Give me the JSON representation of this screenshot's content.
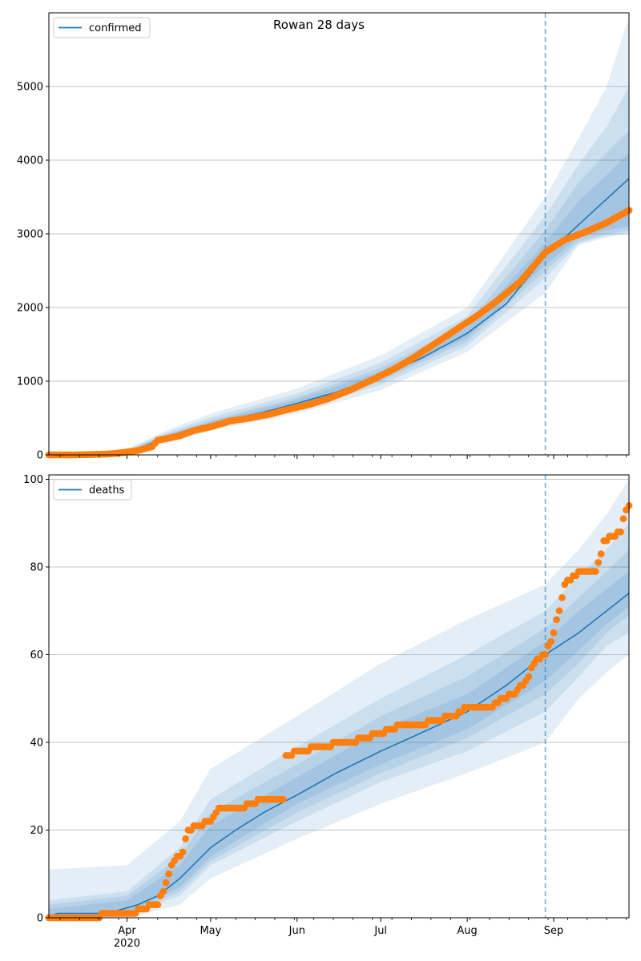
{
  "figure": {
    "title": "Rowan 28 days"
  },
  "chart_data": [
    {
      "type": "line",
      "name": "confirmed-panel",
      "series": [
        {
          "name": "confirmed",
          "kind": "line",
          "color": "#1f77b4"
        }
      ],
      "legend_position": "top-left",
      "grid": "y",
      "xlim": [
        "2020-03-04",
        "2020-09-28"
      ],
      "ylim": [
        0,
        6000
      ],
      "yticks": [
        0,
        1000,
        2000,
        3000,
        4000,
        5000
      ],
      "forecast_start": "2020-08-29",
      "model_median": [
        [
          "2020-03-04",
          0
        ],
        [
          "2020-03-20",
          3
        ],
        [
          "2020-03-25",
          12
        ],
        [
          "2020-03-31",
          40
        ],
        [
          "2020-04-05",
          90
        ],
        [
          "2020-04-10",
          160
        ],
        [
          "2020-04-15",
          240
        ],
        [
          "2020-04-20",
          300
        ],
        [
          "2020-04-25",
          360
        ],
        [
          "2020-05-01",
          420
        ],
        [
          "2020-05-10",
          500
        ],
        [
          "2020-05-20",
          580
        ],
        [
          "2020-06-01",
          700
        ],
        [
          "2020-06-15",
          850
        ],
        [
          "2020-07-01",
          1080
        ],
        [
          "2020-07-15",
          1300
        ],
        [
          "2020-08-01",
          1650
        ],
        [
          "2020-08-15",
          2050
        ],
        [
          "2020-08-29",
          2700
        ],
        [
          "2020-09-05",
          2950
        ],
        [
          "2020-09-15",
          3300
        ],
        [
          "2020-09-28",
          3750
        ]
      ],
      "observed": [
        [
          "2020-03-04",
          0
        ],
        [
          "2020-03-12",
          0
        ],
        [
          "2020-03-18",
          3
        ],
        [
          "2020-03-24",
          10
        ],
        [
          "2020-03-28",
          20
        ],
        [
          "2020-04-01",
          40
        ],
        [
          "2020-04-05",
          60
        ],
        [
          "2020-04-10",
          110
        ],
        [
          "2020-04-12",
          200
        ],
        [
          "2020-04-15",
          220
        ],
        [
          "2020-04-20",
          260
        ],
        [
          "2020-04-25",
          330
        ],
        [
          "2020-05-01",
          380
        ],
        [
          "2020-05-08",
          460
        ],
        [
          "2020-05-15",
          500
        ],
        [
          "2020-05-22",
          550
        ],
        [
          "2020-05-28",
          610
        ],
        [
          "2020-06-05",
          680
        ],
        [
          "2020-06-12",
          760
        ],
        [
          "2020-06-20",
          880
        ],
        [
          "2020-06-28",
          1020
        ],
        [
          "2020-07-05",
          1150
        ],
        [
          "2020-07-12",
          1300
        ],
        [
          "2020-07-20",
          1500
        ],
        [
          "2020-07-28",
          1700
        ],
        [
          "2020-08-05",
          1900
        ],
        [
          "2020-08-12",
          2100
        ],
        [
          "2020-08-20",
          2350
        ],
        [
          "2020-08-29",
          2750
        ],
        [
          "2020-09-05",
          2920
        ],
        [
          "2020-09-12",
          3020
        ],
        [
          "2020-09-20",
          3150
        ],
        [
          "2020-09-28",
          3320
        ]
      ],
      "intervals": [
        {
          "opacity": 0.12,
          "band": [
            [
              "2020-03-04",
              0,
              0
            ],
            [
              "2020-04-01",
              20,
              80
            ],
            [
              "2020-04-15",
              160,
              330
            ],
            [
              "2020-05-01",
              330,
              560
            ],
            [
              "2020-06-01",
              560,
              900
            ],
            [
              "2020-07-01",
              880,
              1350
            ],
            [
              "2020-08-01",
              1400,
              2000
            ],
            [
              "2020-08-29",
              2200,
              3500
            ],
            [
              "2020-09-10",
              2850,
              4300
            ],
            [
              "2020-09-20",
              2950,
              5000
            ],
            [
              "2020-09-28",
              3000,
              5950
            ]
          ]
        },
        {
          "opacity": 0.12,
          "band": [
            [
              "2020-03-04",
              0,
              0
            ],
            [
              "2020-04-01",
              25,
              65
            ],
            [
              "2020-04-15",
              185,
              300
            ],
            [
              "2020-05-01",
              360,
              510
            ],
            [
              "2020-06-01",
              600,
              830
            ],
            [
              "2020-07-01",
              950,
              1250
            ],
            [
              "2020-08-01",
              1480,
              1880
            ],
            [
              "2020-08-29",
              2400,
              3250
            ],
            [
              "2020-09-10",
              2870,
              3950
            ],
            [
              "2020-09-20",
              2980,
              4450
            ],
            [
              "2020-09-28",
              3020,
              5000
            ]
          ]
        },
        {
          "opacity": 0.12,
          "band": [
            [
              "2020-03-04",
              0,
              0
            ],
            [
              "2020-04-01",
              30,
              55
            ],
            [
              "2020-04-15",
              200,
              280
            ],
            [
              "2020-05-01",
              380,
              470
            ],
            [
              "2020-06-01",
              630,
              780
            ],
            [
              "2020-07-01",
              1000,
              1180
            ],
            [
              "2020-08-01",
              1540,
              1780
            ],
            [
              "2020-08-29",
              2500,
              3050
            ],
            [
              "2020-09-10",
              2900,
              3700
            ],
            [
              "2020-09-20",
              3000,
              4100
            ],
            [
              "2020-09-28",
              3050,
              4400
            ]
          ]
        },
        {
          "opacity": 0.12,
          "band": [
            [
              "2020-03-04",
              0,
              0
            ],
            [
              "2020-04-01",
              33,
              48
            ],
            [
              "2020-04-15",
              215,
              265
            ],
            [
              "2020-05-01",
              400,
              450
            ],
            [
              "2020-06-01",
              660,
              750
            ],
            [
              "2020-07-01",
              1030,
              1130
            ],
            [
              "2020-08-01",
              1590,
              1720
            ],
            [
              "2020-08-29",
              2580,
              2880
            ],
            [
              "2020-09-10",
              2950,
              3450
            ],
            [
              "2020-09-20",
              3050,
              3800
            ],
            [
              "2020-09-28",
              3100,
              4100
            ]
          ]
        }
      ]
    },
    {
      "type": "line",
      "name": "deaths-panel",
      "series": [
        {
          "name": "deaths",
          "kind": "line",
          "color": "#1f77b4"
        }
      ],
      "legend_position": "top-left",
      "grid": "y",
      "xlim": [
        "2020-03-04",
        "2020-09-28"
      ],
      "ylim": [
        0,
        101
      ],
      "yticks": [
        0,
        20,
        40,
        60,
        80,
        100
      ],
      "forecast_start": "2020-08-29",
      "model_median": [
        [
          "2020-03-04",
          0
        ],
        [
          "2020-03-07",
          1
        ],
        [
          "2020-03-25",
          1
        ],
        [
          "2020-04-05",
          3
        ],
        [
          "2020-04-12",
          5
        ],
        [
          "2020-04-20",
          9
        ],
        [
          "2020-05-01",
          16
        ],
        [
          "2020-05-10",
          20
        ],
        [
          "2020-05-20",
          24
        ],
        [
          "2020-06-01",
          28
        ],
        [
          "2020-06-15",
          33
        ],
        [
          "2020-07-01",
          38
        ],
        [
          "2020-07-15",
          42
        ],
        [
          "2020-08-01",
          47
        ],
        [
          "2020-08-15",
          53
        ],
        [
          "2020-08-29",
          60
        ],
        [
          "2020-09-10",
          65
        ],
        [
          "2020-09-20",
          70
        ],
        [
          "2020-09-28",
          74
        ]
      ],
      "observed": [
        [
          "2020-03-04",
          0
        ],
        [
          "2020-03-20",
          0
        ],
        [
          "2020-03-26",
          1
        ],
        [
          "2020-04-04",
          1
        ],
        [
          "2020-04-05",
          2
        ],
        [
          "2020-04-12",
          3
        ],
        [
          "2020-04-15",
          8
        ],
        [
          "2020-04-17",
          12
        ],
        [
          "2020-04-21",
          15
        ],
        [
          "2020-04-23",
          20
        ],
        [
          "2020-04-27",
          21
        ],
        [
          "2020-05-01",
          22
        ],
        [
          "2020-05-03",
          24
        ],
        [
          "2020-05-05",
          25
        ],
        [
          "2020-05-12",
          25
        ],
        [
          "2020-05-15",
          26
        ],
        [
          "2020-05-20",
          27
        ],
        [
          "2020-05-27",
          27
        ],
        [
          "2020-05-28",
          37
        ],
        [
          "2020-06-03",
          38
        ],
        [
          "2020-06-08",
          39
        ],
        [
          "2020-06-20",
          40
        ],
        [
          "2020-06-25",
          41
        ],
        [
          "2020-07-01",
          42
        ],
        [
          "2020-07-08",
          44
        ],
        [
          "2020-07-15",
          44
        ],
        [
          "2020-07-20",
          45
        ],
        [
          "2020-07-28",
          46
        ],
        [
          "2020-08-01",
          48
        ],
        [
          "2020-08-10",
          48
        ],
        [
          "2020-08-14",
          50
        ],
        [
          "2020-08-18",
          51
        ],
        [
          "2020-08-22",
          54
        ],
        [
          "2020-08-26",
          59
        ],
        [
          "2020-08-29",
          60
        ],
        [
          "2020-09-01",
          65
        ],
        [
          "2020-09-03",
          70
        ],
        [
          "2020-09-05",
          76
        ],
        [
          "2020-09-08",
          78
        ],
        [
          "2020-09-11",
          79
        ],
        [
          "2020-09-16",
          79
        ],
        [
          "2020-09-18",
          83
        ],
        [
          "2020-09-19",
          86
        ],
        [
          "2020-09-22",
          87
        ],
        [
          "2020-09-25",
          88
        ],
        [
          "2020-09-26",
          91
        ],
        [
          "2020-09-28",
          94
        ]
      ],
      "intervals": [
        {
          "opacity": 0.12,
          "band": [
            [
              "2020-03-04",
              0,
              11
            ],
            [
              "2020-04-01",
              0,
              12
            ],
            [
              "2020-04-20",
              3,
              22
            ],
            [
              "2020-05-01",
              9,
              34
            ],
            [
              "2020-06-01",
              18,
              46
            ],
            [
              "2020-07-01",
              26,
              58
            ],
            [
              "2020-08-01",
              33,
              68
            ],
            [
              "2020-08-29",
              40,
              76
            ],
            [
              "2020-09-10",
              50,
              84
            ],
            [
              "2020-09-20",
              56,
              92
            ],
            [
              "2020-09-28",
              60,
              100
            ]
          ]
        },
        {
          "opacity": 0.12,
          "band": [
            [
              "2020-03-04",
              0,
              4
            ],
            [
              "2020-04-01",
              1,
              6
            ],
            [
              "2020-04-20",
              5,
              16
            ],
            [
              "2020-05-01",
              12,
              27
            ],
            [
              "2020-06-01",
              22,
              39
            ],
            [
              "2020-07-01",
              31,
              50
            ],
            [
              "2020-08-01",
              38,
              60
            ],
            [
              "2020-08-29",
              47,
              70
            ],
            [
              "2020-09-10",
              55,
              78
            ],
            [
              "2020-09-20",
              62,
              84
            ],
            [
              "2020-09-28",
              65,
              90
            ]
          ]
        },
        {
          "opacity": 0.12,
          "band": [
            [
              "2020-03-04",
              0,
              3
            ],
            [
              "2020-04-01",
              1,
              5
            ],
            [
              "2020-04-20",
              6,
              14
            ],
            [
              "2020-05-01",
              13,
              24
            ],
            [
              "2020-06-01",
              24,
              35
            ],
            [
              "2020-07-01",
              33,
              46
            ],
            [
              "2020-08-01",
              41,
              55
            ],
            [
              "2020-08-29",
              51,
              66
            ],
            [
              "2020-09-10",
              58,
              73
            ],
            [
              "2020-09-20",
              65,
              79
            ],
            [
              "2020-09-28",
              69,
              84
            ]
          ]
        },
        {
          "opacity": 0.12,
          "band": [
            [
              "2020-03-04",
              0,
              2
            ],
            [
              "2020-04-01",
              1,
              4
            ],
            [
              "2020-04-20",
              7,
              12
            ],
            [
              "2020-05-01",
              14,
              21
            ],
            [
              "2020-06-01",
              26,
              32
            ],
            [
              "2020-07-01",
              35,
              43
            ],
            [
              "2020-08-01",
              43,
              51
            ],
            [
              "2020-08-29",
              54,
              63
            ],
            [
              "2020-09-10",
              61,
              70
            ],
            [
              "2020-09-20",
              67,
              75
            ],
            [
              "2020-09-28",
              71,
              79
            ]
          ]
        }
      ]
    }
  ],
  "x_axis": {
    "ticks": [
      {
        "date": "2020-04-01",
        "label": "Apr",
        "sublabel": "2020"
      },
      {
        "date": "2020-05-01",
        "label": "May"
      },
      {
        "date": "2020-06-01",
        "label": "Jun"
      },
      {
        "date": "2020-07-01",
        "label": "Jul"
      },
      {
        "date": "2020-08-01",
        "label": "Aug"
      },
      {
        "date": "2020-09-01",
        "label": "Sep"
      }
    ]
  },
  "colors": {
    "model": "#1f77b4",
    "observed": "#ff7f0e",
    "band": "#1f77b4",
    "grid": "#b0b0b0",
    "forecast_line": "#1f77b4"
  }
}
